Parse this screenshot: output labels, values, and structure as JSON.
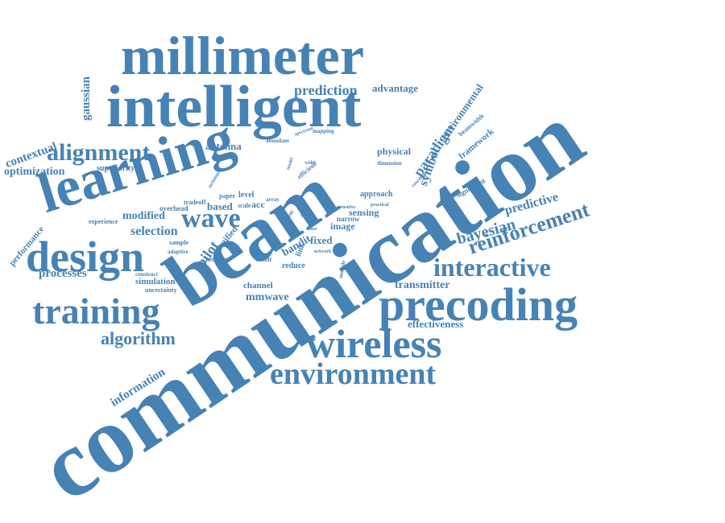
{
  "color": "#4682b4",
  "words": [
    "communication",
    "beam",
    "intelligent",
    "millimeter",
    "learning",
    "design",
    "training",
    "precoding",
    "wireless",
    "environment",
    "alignment",
    "wave",
    "interactive",
    "reinforcement",
    "bayesian",
    "predictive",
    "paradigm",
    "symbol",
    "framework",
    "environmental",
    "beamwidth",
    "prediction",
    "advantage",
    "algorithm",
    "information",
    "effectiveness",
    "transmitter",
    "mmwave",
    "channel",
    "processes",
    "simulation",
    "uncertainty",
    "contextual",
    "gaussian",
    "optimization",
    "performance",
    "superiority",
    "experience",
    "modified",
    "selection",
    "pilot",
    "unified",
    "antenna",
    "abundant",
    "mapping",
    "physical",
    "dimension",
    "coordinate",
    "significant",
    "approach",
    "sensing",
    "image",
    "narrow",
    "fixed",
    "bandit",
    "reduce",
    "network",
    "module",
    "link",
    "result",
    "receiver",
    "adaptive",
    "sample",
    "construct",
    "overhead",
    "tradeoff",
    "paper",
    "level",
    "scale",
    "acc",
    "based",
    "technique",
    "spectrum",
    "model",
    "efficient",
    "width",
    "practical",
    "sensitive",
    "array",
    "state",
    "system",
    "drift",
    "other"
  ]
}
